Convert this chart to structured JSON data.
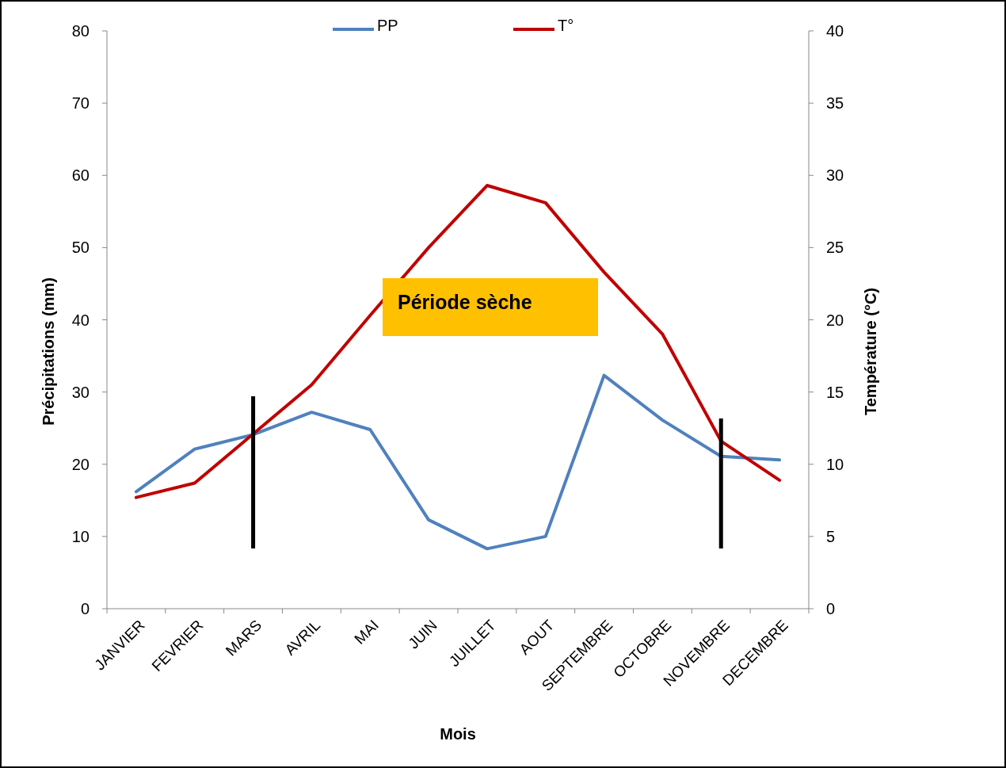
{
  "chart_data": {
    "type": "line",
    "xlabel": "Mois",
    "ylabel": "Précipitations (mm)",
    "y2label": "Température (°C)",
    "categories": [
      "JANVIER",
      "FEVRIER",
      "MARS",
      "AVRIL",
      "MAI",
      "JUIN",
      "JUILLET",
      "AOUT",
      "SEPTEMBRE",
      "OCTOBRE",
      "NOVEMBRE",
      "DECEMBRE"
    ],
    "series": [
      {
        "name": "PP",
        "color": "#4f81bd",
        "values": [
          16.2,
          22.1,
          24.1,
          27.2,
          24.8,
          12.3,
          8.3,
          10.0,
          32.3,
          26.1,
          21.1,
          20.6
        ]
      },
      {
        "name": "T°",
        "color": "#c00000",
        "axis": "y2",
        "values": [
          7.7,
          8.7,
          12.1,
          15.5,
          20.3,
          25.0,
          29.3,
          28.1,
          23.3,
          19.0,
          11.6,
          8.9
        ]
      }
    ],
    "ylim": [
      0,
      80
    ],
    "yticks": [
      0,
      10,
      20,
      30,
      40,
      50,
      60,
      70,
      80
    ],
    "y2lim": [
      0,
      40
    ],
    "y2ticks": [
      0,
      5,
      10,
      15,
      20,
      25,
      30,
      35,
      40
    ],
    "ref_lines": [
      {
        "axis": "x",
        "value": "MARS",
        "color": "#000000"
      },
      {
        "axis": "x",
        "value": "NOVEMBRE",
        "color": "#000000"
      }
    ],
    "annotations": [
      "Période sèche"
    ],
    "legend": "top",
    "grid": false,
    "marker": "none",
    "line_style": "solid"
  }
}
